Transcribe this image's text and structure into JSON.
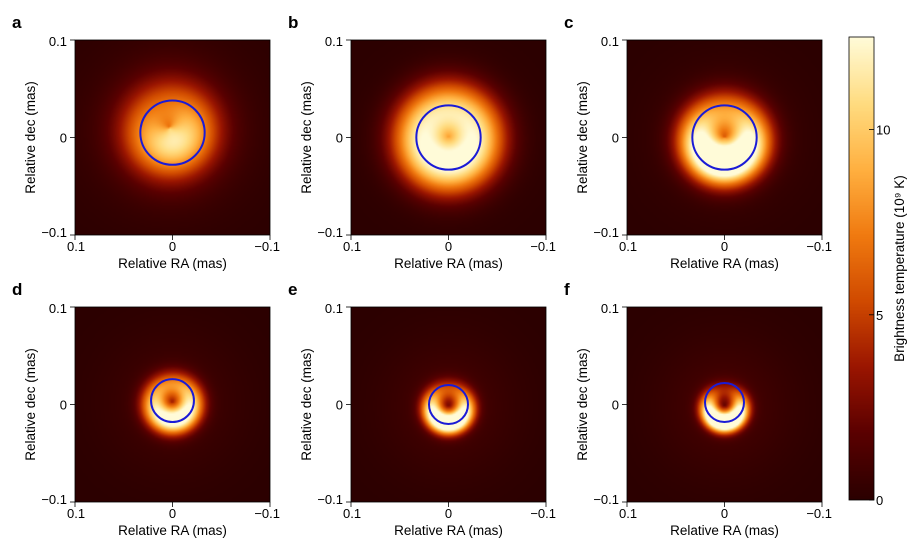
{
  "chart_data": {
    "type": "heatmap",
    "panels": [
      {
        "label": "a",
        "ring": {
          "cx": 0.0,
          "cy": 0.005,
          "r": 0.033
        },
        "blob": {
          "kind": "blob",
          "cx": 0.003,
          "cy": 0.01,
          "r": 0.045,
          "peak": 9.0,
          "ring_mod": 0.5,
          "bright_dir_deg": 250,
          "asym": 0.25
        }
      },
      {
        "label": "b",
        "ring": {
          "cx": 0.0,
          "cy": 0.0,
          "r": 0.033
        },
        "blob": {
          "kind": "ring",
          "cx": 0.0,
          "cy": 0.0,
          "r": 0.028,
          "width": 0.03,
          "peak": 10.5,
          "center_floor": 0.6,
          "bright_dir_deg": 270,
          "asym": 0.1
        }
      },
      {
        "label": "c",
        "ring": {
          "cx": 0.0,
          "cy": 0.0,
          "r": 0.033
        },
        "blob": {
          "kind": "ring",
          "cx": 0.0,
          "cy": 0.0,
          "r": 0.026,
          "width": 0.022,
          "peak": 12.0,
          "center_floor": 0.45,
          "bright_dir_deg": 270,
          "asym": 0.45
        }
      },
      {
        "label": "d",
        "ring": {
          "cx": 0.0,
          "cy": 0.004,
          "r": 0.022
        },
        "blob": {
          "kind": "ring",
          "cx": 0.0,
          "cy": 0.002,
          "r": 0.018,
          "width": 0.014,
          "peak": 11.0,
          "center_floor": 0.2,
          "bright_dir_deg": 260,
          "asym": 0.35
        }
      },
      {
        "label": "e",
        "ring": {
          "cx": 0.0,
          "cy": 0.0,
          "r": 0.02
        },
        "blob": {
          "kind": "ring",
          "cx": 0.0,
          "cy": -0.002,
          "r": 0.017,
          "width": 0.011,
          "peak": 12.0,
          "center_floor": 0.15,
          "bright_dir_deg": 270,
          "asym": 0.6
        }
      },
      {
        "label": "f",
        "ring": {
          "cx": 0.0,
          "cy": 0.002,
          "r": 0.02
        },
        "blob": {
          "kind": "ring",
          "cx": 0.0,
          "cy": -0.002,
          "r": 0.016,
          "width": 0.01,
          "peak": 12.5,
          "center_floor": 0.1,
          "bright_dir_deg": 270,
          "asym": 0.75
        }
      }
    ],
    "xlabel": "Relative RA (mas)",
    "ylabel": "Relative dec (mas)",
    "x_ticks": [
      "0.1",
      "0",
      "−0.1"
    ],
    "y_ticks": [
      "0.1",
      "0",
      "−0.1"
    ],
    "xlim": [
      0.1,
      -0.1
    ],
    "ylim": [
      -0.1,
      0.1
    ],
    "colorbar": {
      "label": "Brightness temperature (10⁹ K)",
      "ticks": [
        "10",
        "5",
        "0"
      ],
      "tick_values": [
        10,
        5,
        0
      ],
      "range": [
        0,
        12.5
      ]
    },
    "ring_color": "#1b1bd6",
    "colormap": [
      "#2b0000",
      "#5a0000",
      "#9a1500",
      "#d04a00",
      "#f07a10",
      "#ffb040",
      "#ffdc80",
      "#fffbd8"
    ]
  }
}
